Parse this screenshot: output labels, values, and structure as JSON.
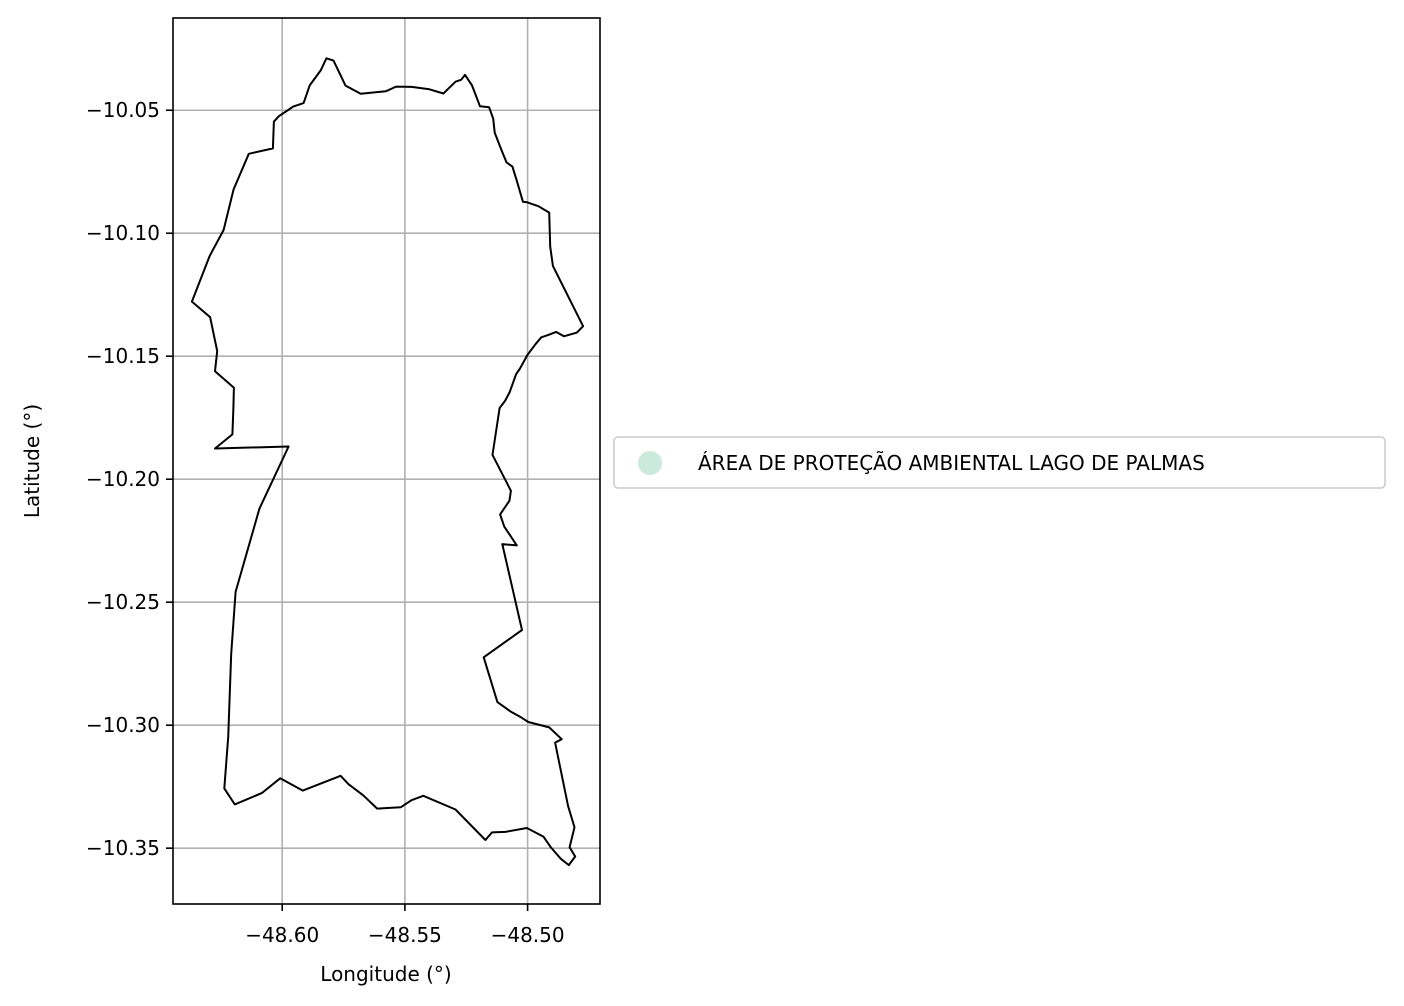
{
  "chart_data": {
    "type": "map",
    "xlabel": "Longitude (°)",
    "ylabel": "Latitude (°)",
    "xlim": [
      -48.6445,
      -48.4705
    ],
    "ylim": [
      -10.3727,
      -10.0125
    ],
    "grid": true,
    "xticks": [
      {
        "value": -48.6,
        "label": "−48.60"
      },
      {
        "value": -48.55,
        "label": "−48.55"
      },
      {
        "value": -48.5,
        "label": "−48.50"
      }
    ],
    "yticks": [
      {
        "value": -10.05,
        "label": "−10.05"
      },
      {
        "value": -10.1,
        "label": "−10.10"
      },
      {
        "value": -10.15,
        "label": "−10.15"
      },
      {
        "value": -10.2,
        "label": "−10.20"
      },
      {
        "value": -10.25,
        "label": "−10.25"
      },
      {
        "value": -10.3,
        "label": "−10.30"
      },
      {
        "value": -10.35,
        "label": "−10.35"
      }
    ],
    "legend": {
      "placement": "center-left-outside",
      "entries": [
        {
          "label": "ÁREA DE PROTEÇÃO AMBIENTAL LAGO DE PALMAS",
          "color": "#cbe9dd"
        }
      ]
    },
    "series": [
      {
        "label": "ÁREA DE PROTEÇÃO AMBIENTAL LAGO DE PALMAS",
        "fill": "none",
        "stroke": "#000000",
        "coordinates": [
          [
            -48.5979,
            -10.0501
          ],
          [
            -48.5955,
            -10.0485
          ],
          [
            -48.5913,
            -10.0471
          ],
          [
            -48.5888,
            -10.0399
          ],
          [
            -48.5843,
            -10.0338
          ],
          [
            -48.582,
            -10.0289
          ],
          [
            -48.5791,
            -10.0298
          ],
          [
            -48.5742,
            -10.04
          ],
          [
            -48.568,
            -10.0433
          ],
          [
            -48.5578,
            -10.0423
          ],
          [
            -48.5536,
            -10.0404
          ],
          [
            -48.5473,
            -10.0405
          ],
          [
            -48.54,
            -10.0415
          ],
          [
            -48.5343,
            -10.0432
          ],
          [
            -48.5294,
            -10.0384
          ],
          [
            -48.527,
            -10.0376
          ],
          [
            -48.5255,
            -10.0356
          ],
          [
            -48.5226,
            -10.04
          ],
          [
            -48.5194,
            -10.0484
          ],
          [
            -48.5157,
            -10.0488
          ],
          [
            -48.514,
            -10.0534
          ],
          [
            -48.5134,
            -10.0591
          ],
          [
            -48.5109,
            -10.0656
          ],
          [
            -48.5086,
            -10.0712
          ],
          [
            -48.5062,
            -10.0729
          ],
          [
            -48.5045,
            -10.0784
          ],
          [
            -48.5019,
            -10.0872
          ],
          [
            -48.5003,
            -10.0874
          ],
          [
            -48.4986,
            -10.088
          ],
          [
            -48.4956,
            -10.089
          ],
          [
            -48.4912,
            -10.0916
          ],
          [
            -48.4908,
            -10.1054
          ],
          [
            -48.4897,
            -10.1133
          ],
          [
            -48.4774,
            -10.1378
          ],
          [
            -48.4799,
            -10.1404
          ],
          [
            -48.4852,
            -10.1419
          ],
          [
            -48.4884,
            -10.1401
          ],
          [
            -48.4917,
            -10.1414
          ],
          [
            -48.4944,
            -10.1423
          ],
          [
            -48.4968,
            -10.1451
          ],
          [
            -48.5001,
            -10.1495
          ],
          [
            -48.5031,
            -10.155
          ],
          [
            -48.5047,
            -10.1573
          ],
          [
            -48.5073,
            -10.1646
          ],
          [
            -48.5091,
            -10.168
          ],
          [
            -48.5114,
            -10.1711
          ],
          [
            -48.5143,
            -10.1901
          ],
          [
            -48.5068,
            -10.2047
          ],
          [
            -48.5074,
            -10.2088
          ],
          [
            -48.5112,
            -10.2143
          ],
          [
            -48.5095,
            -10.2193
          ],
          [
            -48.5044,
            -10.2269
          ],
          [
            -48.5103,
            -10.2264
          ],
          [
            -48.5023,
            -10.2613
          ],
          [
            -48.5179,
            -10.2724
          ],
          [
            -48.5123,
            -10.2906
          ],
          [
            -48.5067,
            -10.2946
          ],
          [
            -48.5027,
            -10.2968
          ],
          [
            -48.4997,
            -10.2987
          ],
          [
            -48.4912,
            -10.3009
          ],
          [
            -48.4861,
            -10.3057
          ],
          [
            -48.4888,
            -10.3071
          ],
          [
            -48.4835,
            -10.3329
          ],
          [
            -48.4809,
            -10.3415
          ],
          [
            -48.4829,
            -10.3496
          ],
          [
            -48.4806,
            -10.3534
          ],
          [
            -48.4832,
            -10.3569
          ],
          [
            -48.4865,
            -10.3543
          ],
          [
            -48.4905,
            -10.3497
          ],
          [
            -48.4935,
            -10.3454
          ],
          [
            -48.5003,
            -10.3418
          ],
          [
            -48.5091,
            -10.3434
          ],
          [
            -48.5145,
            -10.3436
          ],
          [
            -48.5172,
            -10.3467
          ],
          [
            -48.5294,
            -10.3343
          ],
          [
            -48.5425,
            -10.3287
          ],
          [
            -48.5473,
            -10.3305
          ],
          [
            -48.5517,
            -10.3334
          ],
          [
            -48.5613,
            -10.3339
          ],
          [
            -48.567,
            -10.3285
          ],
          [
            -48.573,
            -10.324
          ],
          [
            -48.5762,
            -10.3206
          ],
          [
            -48.5916,
            -10.3266
          ],
          [
            -48.6008,
            -10.3216
          ],
          [
            -48.6083,
            -10.3276
          ],
          [
            -48.6193,
            -10.3322
          ],
          [
            -48.6236,
            -10.3257
          ],
          [
            -48.622,
            -10.3049
          ],
          [
            -48.6208,
            -10.271
          ],
          [
            -48.619,
            -10.2458
          ],
          [
            -48.6093,
            -10.212
          ],
          [
            -48.5974,
            -10.1867
          ],
          [
            -48.6274,
            -10.1875
          ],
          [
            -48.6203,
            -10.1818
          ],
          [
            -48.6199,
            -10.171
          ],
          [
            -48.6197,
            -10.1628
          ],
          [
            -48.6274,
            -10.1561
          ],
          [
            -48.6265,
            -10.1479
          ],
          [
            -48.6294,
            -10.1341
          ],
          [
            -48.6368,
            -10.1278
          ],
          [
            -48.6296,
            -10.1093
          ],
          [
            -48.6239,
            -10.0987
          ],
          [
            -48.6198,
            -10.0822
          ],
          [
            -48.6136,
            -10.0677
          ],
          [
            -48.6038,
            -10.0655
          ],
          [
            -48.6034,
            -10.0546
          ],
          [
            -48.6013,
            -10.0524
          ],
          [
            -48.5979,
            -10.0501
          ]
        ]
      }
    ]
  }
}
